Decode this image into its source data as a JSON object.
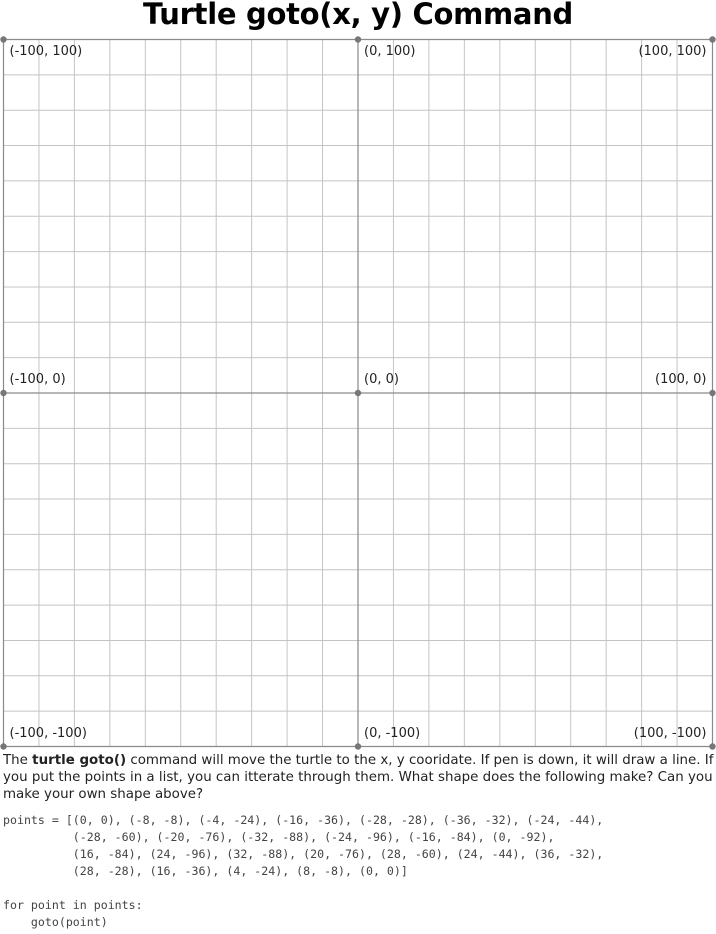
{
  "title": "Turtle goto(x, y) Command",
  "grid": {
    "x_range": [
      -100,
      100
    ],
    "y_range": [
      -100,
      100
    ],
    "minor_step": 10,
    "labels": [
      {
        "text": "(-100, 100)",
        "name": "label-top-left"
      },
      {
        "text": "(0, 100)",
        "name": "label-top-center"
      },
      {
        "text": "(100, 100)",
        "name": "label-top-right"
      },
      {
        "text": "(-100, 0)",
        "name": "label-middle-left"
      },
      {
        "text": "(0, 0)",
        "name": "label-origin"
      },
      {
        "text": "(100, 0)",
        "name": "label-middle-right"
      },
      {
        "text": "(-100, -100)",
        "name": "label-bottom-left"
      },
      {
        "text": "(0, -100)",
        "name": "label-bottom-center"
      },
      {
        "text": "(100, -100)",
        "name": "label-bottom-right"
      }
    ]
  },
  "description": {
    "before": "The ",
    "bold": "turtle goto()",
    "after": " command will move the turtle to the x, y cooridate.  If pen is down, it will draw a line.  If you put the points in a list, you can itterate through them.  What shape does the following make?  Can you make your own shape above?"
  },
  "code": "points = [(0, 0), (-8, -8), (-4, -24), (-16, -36), (-28, -28), (-36, -32), (-24, -44),\n          (-28, -60), (-20, -76), (-32, -88), (-24, -96), (-16, -84), (0, -92),\n          (16, -84), (24, -96), (32, -88), (20, -76), (28, -60), (24, -44), (36, -32),\n          (28, -28), (16, -36), (4, -24), (8, -8), (0, 0)]\n\nfor point in points:\n    goto(point)"
}
